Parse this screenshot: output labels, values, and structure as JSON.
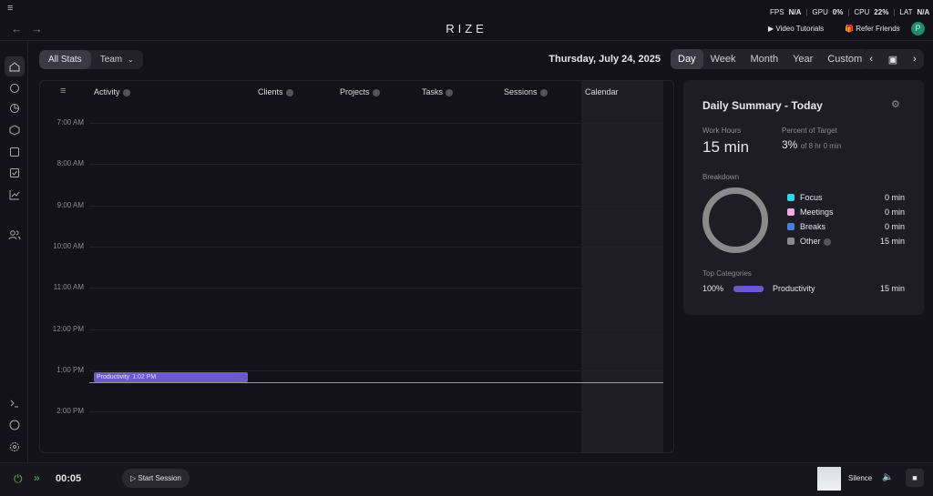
{
  "overlay": {
    "fps_label": "FPS",
    "fps": "N/A",
    "gpu_label": "GPU",
    "gpu": "0%",
    "cpu_label": "CPU",
    "cpu": "22%",
    "lat_label": "LAT",
    "lat": "N/A"
  },
  "app": {
    "title": "RIZE",
    "video_tutorials": "Video Tutorials",
    "refer_friends": "Refer Friends",
    "avatar": "P"
  },
  "toolbar": {
    "tabs": [
      "All Stats",
      "Team"
    ],
    "date": "Thursday, July 24, 2025",
    "ranges": [
      "Day",
      "Week",
      "Month",
      "Year",
      "Custom"
    ]
  },
  "table": {
    "columns": [
      "Activity",
      "Clients",
      "Projects",
      "Tasks",
      "Sessions",
      "Calendar"
    ],
    "times": [
      "7:00 AM",
      "8:00 AM",
      "9:00 AM",
      "10:00 AM",
      "11:00 AM",
      "12:00 PM",
      "1:00 PM",
      "2:00 PM"
    ],
    "event": {
      "label": "Productivity",
      "time": "1:02 PM",
      "color": "#6c5acd"
    }
  },
  "summary": {
    "title": "Daily Summary - Today",
    "work_hours_label": "Work Hours",
    "work_hours": "15 min",
    "percent_label": "Percent of Target",
    "percent": "3%",
    "percent_note": "of 8 hr 0 min",
    "breakdown_label": "Breakdown",
    "breakdown": [
      {
        "name": "Focus",
        "color": "#2fd3e6",
        "value": "0 min"
      },
      {
        "name": "Meetings",
        "color": "#f2a9ea",
        "value": "0 min"
      },
      {
        "name": "Breaks",
        "color": "#4a80d9",
        "value": "0 min"
      },
      {
        "name": "Other",
        "color": "#8a8a8a",
        "value": "15 min"
      }
    ],
    "top_categories_label": "Top Categories",
    "top_categories": [
      {
        "percent": "100%",
        "name": "Productivity",
        "value": "15 min",
        "color": "#6c5acd"
      }
    ]
  },
  "footer": {
    "timer": "00:05",
    "start_session": "Start Session",
    "sound": "Silence"
  }
}
